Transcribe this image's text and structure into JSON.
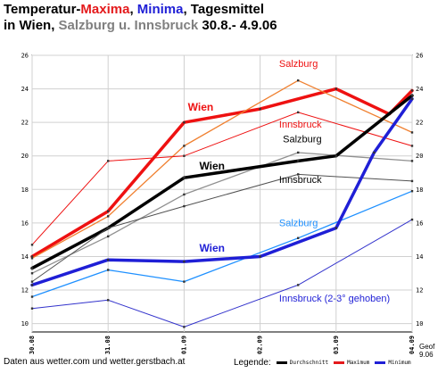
{
  "title": {
    "line1_a": "Temperatur-",
    "line1_max": "Maxima",
    "line1_sep": ", ",
    "line1_min": "Minima",
    "line1_b": ", Tagesmittel",
    "line2_a": "in Wien, ",
    "line2_places": "Salzburg u. Innsbruck",
    "line2_b": "  30.8.- 4.9.06"
  },
  "footer": {
    "source": "Daten aus wetter.com  und  wetter.gerstbach.at",
    "legend_label": "Legende:",
    "legend_items": [
      {
        "label": "Durchschnitt",
        "color": "#000000"
      },
      {
        "label": "Maximum",
        "color": "#e41a1c"
      },
      {
        "label": "Minimum",
        "color": "#1f1fd6"
      }
    ],
    "geof_1": "Geof",
    "geof_2": "9.06"
  },
  "chart_data": {
    "type": "line",
    "x": [
      "30.08",
      "31.08",
      "01.09",
      "02.09",
      "03.09",
      "04.09"
    ],
    "ylim": [
      9.5,
      26
    ],
    "yticks": [
      10,
      12,
      14,
      16,
      18,
      20,
      22,
      24,
      26
    ],
    "grid": true,
    "series": [
      {
        "name": "Wien",
        "kind": "Maximum",
        "color": "#ee1111",
        "width": 3.5,
        "points": [
          [
            0,
            14.0
          ],
          [
            1,
            16.7
          ],
          [
            2,
            22.0
          ],
          [
            3,
            22.8
          ],
          [
            4,
            24.0
          ],
          [
            4.7,
            22.5
          ],
          [
            5,
            23.9
          ]
        ]
      },
      {
        "name": "Salzburg",
        "kind": "Maximum",
        "color": "#f08030",
        "width": 1.3,
        "points": [
          [
            0,
            13.9
          ],
          [
            1,
            16.4
          ],
          [
            2,
            20.6
          ],
          [
            3.5,
            24.5
          ],
          [
            5,
            21.4
          ]
        ]
      },
      {
        "name": "Innsbruck",
        "kind": "Maximum",
        "color": "#ee1111",
        "width": 1,
        "points": [
          [
            0,
            14.7
          ],
          [
            1,
            19.7
          ],
          [
            2,
            20.0
          ],
          [
            3.5,
            22.6
          ],
          [
            5,
            20.6
          ]
        ]
      },
      {
        "name": "Salzburg",
        "kind": "Durchschnitt",
        "color": "#909090",
        "width": 1.3,
        "points": [
          [
            0,
            13.0
          ],
          [
            1,
            15.2
          ],
          [
            2,
            17.7
          ],
          [
            3.5,
            20.2
          ],
          [
            5,
            19.7
          ]
        ]
      },
      {
        "name": "Wien",
        "kind": "Durchschnitt",
        "color": "#000000",
        "width": 3.5,
        "points": [
          [
            0,
            13.3
          ],
          [
            1,
            15.7
          ],
          [
            2,
            18.7
          ],
          [
            3.5,
            19.7
          ],
          [
            4,
            20.0
          ],
          [
            5,
            23.6
          ]
        ]
      },
      {
        "name": "Innsbruck",
        "kind": "Durchschnitt",
        "color": "#505050",
        "width": 1,
        "points": [
          [
            0,
            12.5
          ],
          [
            1,
            15.7
          ],
          [
            2,
            17.0
          ],
          [
            3.5,
            18.9
          ],
          [
            5,
            18.5
          ]
        ]
      },
      {
        "name": "Salzburg",
        "kind": "Minimum",
        "color": "#1e90ff",
        "width": 1.3,
        "points": [
          [
            0,
            11.6
          ],
          [
            1,
            13.2
          ],
          [
            2,
            12.5
          ],
          [
            3.5,
            15.1
          ],
          [
            5,
            17.9
          ]
        ]
      },
      {
        "name": "Wien",
        "kind": "Minimum",
        "color": "#1f1fd6",
        "width": 3.5,
        "points": [
          [
            0,
            12.3
          ],
          [
            1,
            13.8
          ],
          [
            2,
            13.7
          ],
          [
            3,
            14.0
          ],
          [
            4,
            15.7
          ],
          [
            4.5,
            20.2
          ],
          [
            5,
            23.4
          ]
        ]
      },
      {
        "name": "Innsbruck",
        "kind": "Minimum",
        "color": "#3333cc",
        "width": 1,
        "points": [
          [
            0,
            10.9
          ],
          [
            1,
            11.4
          ],
          [
            2,
            9.8
          ],
          [
            3.5,
            12.3
          ],
          [
            5,
            16.2
          ]
        ]
      }
    ],
    "annotations": [
      {
        "text": "Wien",
        "color": "#ee1111",
        "bold": true,
        "x": 2.05,
        "y": 22.7
      },
      {
        "text": "Salzburg",
        "color": "#ee1111",
        "bold": false,
        "x": 3.25,
        "y": 25.3
      },
      {
        "text": "Innsbruck",
        "color": "#ee1111",
        "bold": false,
        "x": 3.25,
        "y": 21.7
      },
      {
        "text": "Salzburg",
        "color": "#000000",
        "bold": false,
        "x": 3.3,
        "y": 20.8
      },
      {
        "text": "Wien",
        "color": "#000000",
        "bold": true,
        "x": 2.2,
        "y": 19.2
      },
      {
        "text": "Innsbruck",
        "color": "#000000",
        "bold": false,
        "x": 3.25,
        "y": 18.4
      },
      {
        "text": "Salzburg",
        "color": "#1e90ff",
        "bold": false,
        "x": 3.25,
        "y": 15.8
      },
      {
        "text": "Wien",
        "color": "#1f1fd6",
        "bold": true,
        "x": 2.2,
        "y": 14.3
      },
      {
        "text": "Innsbruck (2-3° gehoben)",
        "color": "#1f1fd6",
        "bold": false,
        "x": 3.25,
        "y": 11.3
      }
    ]
  }
}
